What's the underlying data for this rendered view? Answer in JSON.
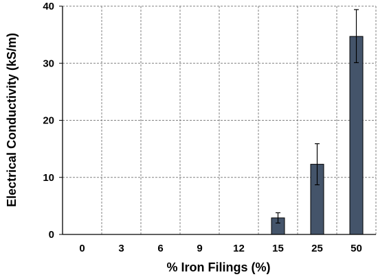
{
  "chart_data": {
    "type": "bar",
    "title": "",
    "xlabel": "% Iron Filings (%)",
    "ylabel": "Electrical Conductivity (kS/m)",
    "categories": [
      "0",
      "3",
      "6",
      "9",
      "12",
      "15",
      "25",
      "50"
    ],
    "values": [
      0,
      0,
      0,
      0,
      0,
      2.9,
      12.3,
      34.7
    ],
    "error_low": [
      0,
      0,
      0,
      0,
      0,
      2.0,
      8.7,
      30.1
    ],
    "error_high": [
      0,
      0,
      0,
      0,
      0,
      3.8,
      15.9,
      39.4
    ],
    "ylim": [
      0,
      40
    ],
    "yticks": [
      "0",
      "10",
      "20",
      "30",
      "40"
    ],
    "grid": true,
    "legend": "none",
    "colors": {
      "bar_fill": "#44546A",
      "bar_stroke": "#000000",
      "grid": "#808080",
      "axis": "#000000"
    }
  }
}
